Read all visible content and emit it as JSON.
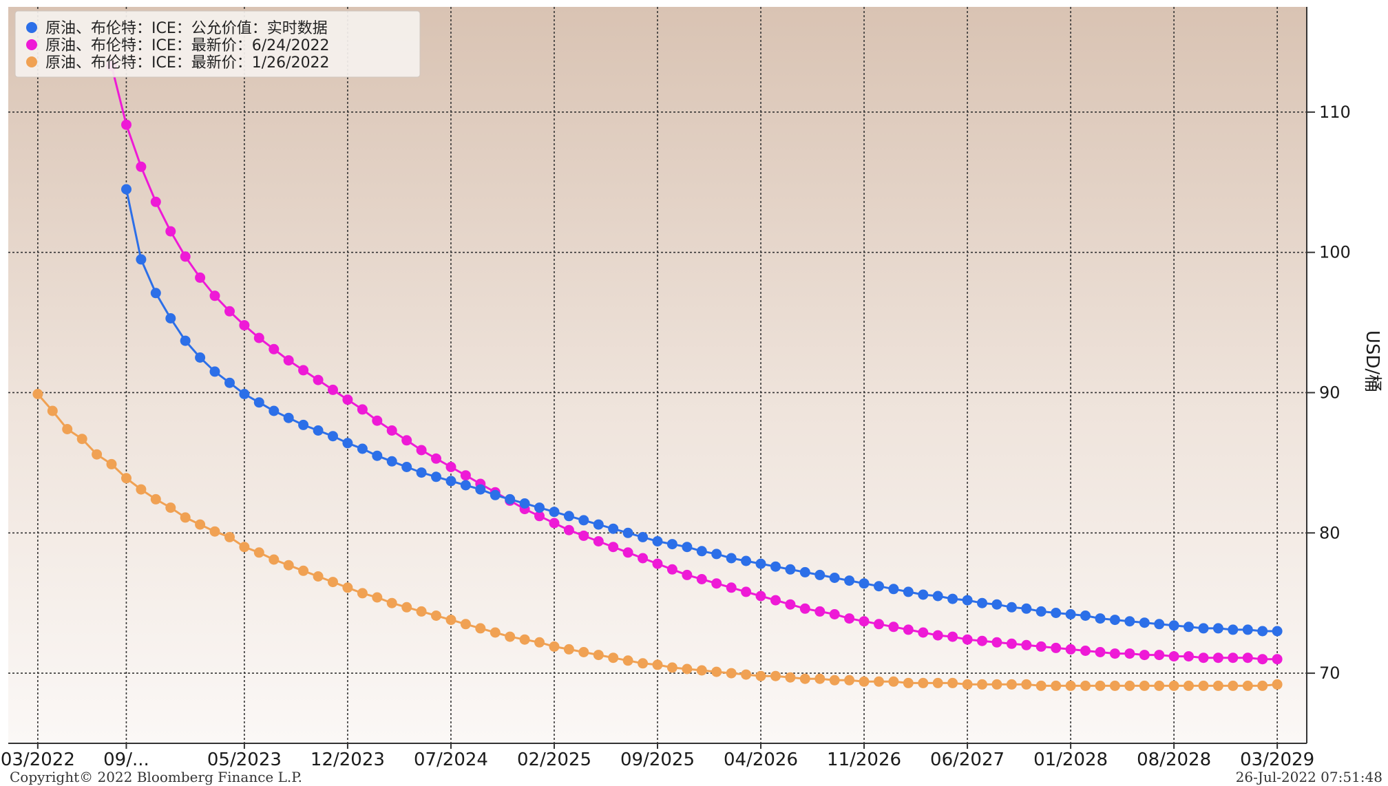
{
  "chart_data": {
    "type": "line",
    "ylabel": "USD/桶",
    "ylim": [
      65,
      117.5
    ],
    "yticks": [
      70,
      80,
      90,
      100,
      110
    ],
    "x_tick_labels": [
      "03/2022",
      "09/...",
      "05/2023",
      "12/2023",
      "07/2024",
      "02/2025",
      "09/2025",
      "04/2026",
      "11/2026",
      "06/2027",
      "01/2028",
      "08/2028",
      "03/2029"
    ],
    "x_tick_positions": [
      0,
      6,
      14,
      21,
      28,
      35,
      42,
      49,
      56,
      63,
      70,
      77,
      84
    ],
    "xlim": [
      -2,
      86
    ],
    "legend_position": "top-left",
    "grid": true,
    "series": [
      {
        "name": "原油、布伦特：ICE：公允价值：实时数据",
        "color": "#2c6fe8",
        "start_index": 6,
        "values": [
          104.5,
          99.5,
          97.1,
          95.3,
          93.7,
          92.5,
          91.5,
          90.7,
          89.9,
          89.3,
          88.7,
          88.2,
          87.7,
          87.3,
          86.9,
          86.4,
          86.0,
          85.5,
          85.1,
          84.7,
          84.3,
          84.0,
          83.7,
          83.4,
          83.1,
          82.7,
          82.4,
          82.1,
          81.8,
          81.5,
          81.2,
          80.9,
          80.6,
          80.3,
          80.0,
          79.7,
          79.4,
          79.2,
          79.0,
          78.7,
          78.5,
          78.2,
          78.0,
          77.8,
          77.6,
          77.4,
          77.2,
          77.0,
          76.8,
          76.6,
          76.4,
          76.2,
          76.0,
          75.8,
          75.6,
          75.5,
          75.3,
          75.2,
          75.0,
          74.9,
          74.7,
          74.6,
          74.4,
          74.3,
          74.2,
          74.1,
          73.9,
          73.8,
          73.7,
          73.6,
          73.5,
          73.4,
          73.3,
          73.2,
          73.2,
          73.1,
          73.1,
          73.0,
          73.0
        ]
      },
      {
        "name": "原油、布伦特：ICE：最新价：6/24/2022",
        "color": "#ee1ad6",
        "start_index": 5,
        "values": [
          113.3,
          109.1,
          106.1,
          103.6,
          101.5,
          99.7,
          98.2,
          96.9,
          95.8,
          94.8,
          93.9,
          93.1,
          92.3,
          91.6,
          90.9,
          90.2,
          89.5,
          88.8,
          88.0,
          87.3,
          86.6,
          85.9,
          85.3,
          84.7,
          84.1,
          83.5,
          82.9,
          82.3,
          81.7,
          81.2,
          80.7,
          80.2,
          79.8,
          79.4,
          79.0,
          78.6,
          78.2,
          77.8,
          77.4,
          77.0,
          76.7,
          76.4,
          76.1,
          75.8,
          75.5,
          75.2,
          74.9,
          74.6,
          74.4,
          74.2,
          73.9,
          73.7,
          73.5,
          73.3,
          73.1,
          72.9,
          72.7,
          72.6,
          72.4,
          72.3,
          72.2,
          72.1,
          72.0,
          71.9,
          71.8,
          71.7,
          71.6,
          71.5,
          71.4,
          71.4,
          71.3,
          71.3,
          71.2,
          71.2,
          71.1,
          71.1,
          71.1,
          71.1,
          71.0,
          71.0
        ]
      },
      {
        "name": "原油、布伦特：ICE：最新价：1/26/2022",
        "color": "#f0a153",
        "start_index": 0,
        "values": [
          89.9,
          88.7,
          87.4,
          86.7,
          85.6,
          84.9,
          83.9,
          83.1,
          82.4,
          81.8,
          81.1,
          80.6,
          80.1,
          79.7,
          79.0,
          78.6,
          78.1,
          77.7,
          77.3,
          76.9,
          76.5,
          76.1,
          75.7,
          75.4,
          75.0,
          74.7,
          74.4,
          74.1,
          73.8,
          73.5,
          73.2,
          72.9,
          72.6,
          72.4,
          72.2,
          71.9,
          71.7,
          71.5,
          71.3,
          71.1,
          70.9,
          70.7,
          70.6,
          70.4,
          70.3,
          70.2,
          70.1,
          70.0,
          69.9,
          69.8,
          69.8,
          69.7,
          69.6,
          69.6,
          69.5,
          69.5,
          69.4,
          69.4,
          69.4,
          69.3,
          69.3,
          69.3,
          69.3,
          69.2,
          69.2,
          69.2,
          69.2,
          69.2,
          69.1,
          69.1,
          69.1,
          69.1,
          69.1,
          69.1,
          69.1,
          69.1,
          69.1,
          69.1,
          69.1,
          69.1,
          69.1,
          69.1,
          69.1,
          69.1,
          69.2
        ]
      }
    ]
  },
  "footer": {
    "copyright": "Copyright© 2022 Bloomberg Finance L.P.",
    "timestamp": "26-Jul-2022 07:51:48"
  }
}
